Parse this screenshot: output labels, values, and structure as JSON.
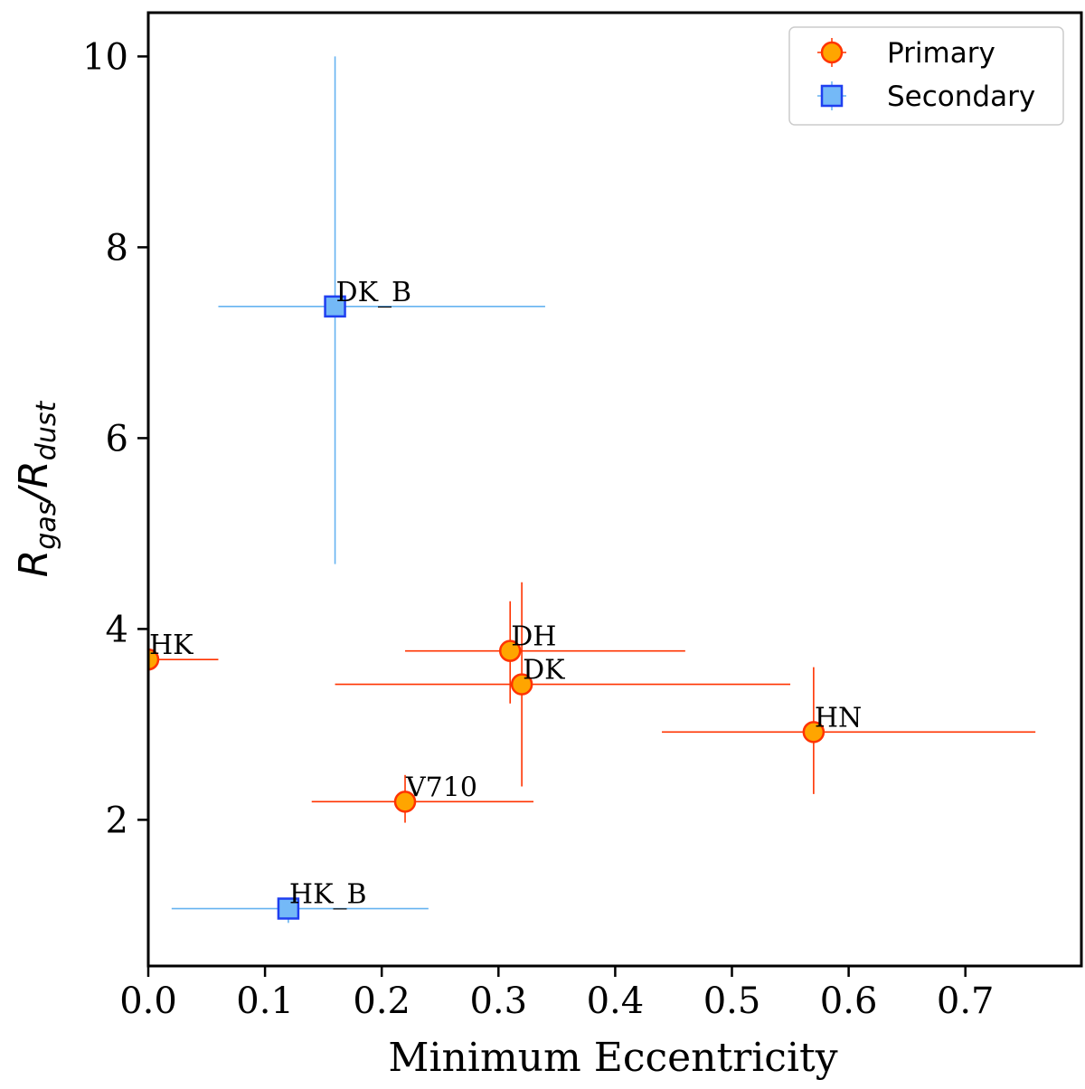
{
  "chart_data": {
    "type": "scatter",
    "xlabel": "Minimum Eccentricity",
    "ylabel": {
      "main": "R",
      "sub1": "gas",
      "slash": "/",
      "main2": "R",
      "sub2": "dust"
    },
    "xlim": [
      0.0,
      0.8
    ],
    "ylim": [
      0.5,
      10.5
    ],
    "xticks": [
      "0.0",
      "0.1",
      "0.2",
      "0.3",
      "0.4",
      "0.5",
      "0.6",
      "0.7"
    ],
    "yticks": [
      "2",
      "4",
      "6",
      "8",
      "10"
    ],
    "legend_position": "top-right",
    "colors": {
      "primary_face": "#ffa500",
      "primary_edge": "#ff3300",
      "secondary_face": "#74b9f7",
      "secondary_edge": "#1f3ff0",
      "secondary_err": "#66b3f0"
    },
    "series": [
      {
        "name": "Primary",
        "marker": "circle",
        "points": [
          {
            "label": "HK",
            "x": 0.0,
            "y": 3.68,
            "xerr": [
              0.0,
              0.06
            ],
            "yerr": [
              0.0,
              0.0
            ]
          },
          {
            "label": "DH",
            "x": 0.31,
            "y": 3.77,
            "xerr": [
              0.09,
              0.15
            ],
            "yerr": [
              0.55,
              0.52
            ]
          },
          {
            "label": "DK",
            "x": 0.32,
            "y": 3.42,
            "xerr": [
              0.16,
              0.23
            ],
            "yerr": [
              1.07,
              1.07
            ]
          },
          {
            "label": "HN",
            "x": 0.57,
            "y": 2.92,
            "xerr": [
              0.13,
              0.19
            ],
            "yerr": [
              0.65,
              0.68
            ]
          },
          {
            "label": "V710",
            "x": 0.22,
            "y": 2.19,
            "xerr": [
              0.08,
              0.11
            ],
            "yerr": [
              0.22,
              0.28
            ]
          }
        ]
      },
      {
        "name": "Secondary",
        "marker": "square",
        "points": [
          {
            "label": "DK_B",
            "x": 0.16,
            "y": 7.38,
            "xerr": [
              0.1,
              0.18
            ],
            "yerr": [
              2.7,
              2.62
            ]
          },
          {
            "label": "HK_B",
            "x": 0.12,
            "y": 1.07,
            "xerr": [
              0.1,
              0.12
            ],
            "yerr": [
              0.15,
              0.0
            ]
          }
        ]
      }
    ]
  }
}
